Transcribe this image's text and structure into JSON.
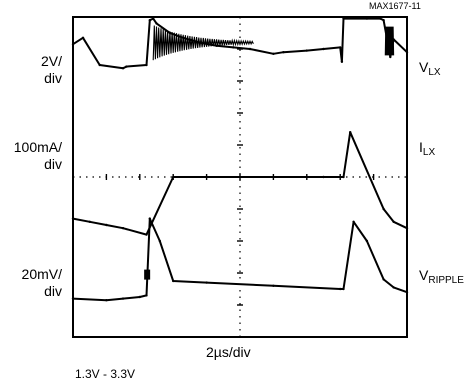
{
  "figure": {
    "id": "MAX1677-11",
    "x_label": "2µs/div",
    "cut_caption": "1.3V - 3.3V"
  },
  "channels": [
    {
      "scale_line1": "2V/",
      "scale_line2": "div",
      "label_main": "V",
      "label_sub": "LX"
    },
    {
      "scale_line1": "100mA/",
      "scale_line2": "div",
      "label_main": "I",
      "label_sub": "LX"
    },
    {
      "scale_line1": "20mV/",
      "scale_line2": "div",
      "label_main": "V",
      "label_sub": "RIPPLE"
    }
  ],
  "chart_data": {
    "type": "line",
    "title": "",
    "xlabel": "2µs/div",
    "ylabel": "",
    "xlim": [
      0,
      10
    ],
    "grid": false,
    "colors": {
      "trace": "#000000",
      "frame": "#000000",
      "graticule": "#000000"
    },
    "series": [
      {
        "name": "VLX",
        "scale": "2V/div",
        "x": [
          0.0,
          0.3,
          0.8,
          1.5,
          1.6,
          2.2,
          2.3,
          2.4,
          2.5,
          2.9,
          3.3,
          3.8,
          4.3,
          4.8,
          5.3,
          6.0,
          6.3,
          7.0,
          7.5,
          8.0,
          8.05,
          8.1,
          8.8,
          9.2,
          9.3,
          9.5,
          9.6,
          10.0
        ],
        "y": [
          9.15,
          9.35,
          8.5,
          8.4,
          8.45,
          8.5,
          9.9,
          9.95,
          9.8,
          9.5,
          9.35,
          9.2,
          9.1,
          9.05,
          9.0,
          8.85,
          8.9,
          8.95,
          9.0,
          9.05,
          8.6,
          9.95,
          9.95,
          9.95,
          9.9,
          8.75,
          9.3,
          8.9
        ]
      },
      {
        "name": "ILX",
        "scale": "100mA/div",
        "x": [
          0.0,
          0.5,
          1.0,
          1.5,
          2.2,
          3.0,
          5.0,
          7.0,
          7.5,
          8.1,
          8.3,
          9.3,
          9.6,
          10.0
        ],
        "y": [
          3.7,
          3.6,
          3.5,
          3.4,
          3.2,
          5.0,
          5.0,
          5.0,
          5.0,
          5.0,
          6.4,
          4.0,
          3.6,
          3.4
        ]
      },
      {
        "name": "VRIPPLE",
        "scale": "20mV/div",
        "x": [
          0.0,
          1.0,
          1.5,
          2.0,
          2.2,
          2.3,
          2.6,
          3.0,
          4.0,
          6.0,
          8.0,
          8.1,
          8.4,
          8.8,
          9.3,
          9.6,
          10.0
        ],
        "y": [
          1.2,
          1.15,
          1.2,
          1.25,
          1.3,
          3.7,
          3.0,
          1.75,
          1.7,
          1.6,
          1.5,
          1.5,
          3.6,
          3.0,
          1.8,
          1.55,
          1.4
        ]
      }
    ]
  }
}
